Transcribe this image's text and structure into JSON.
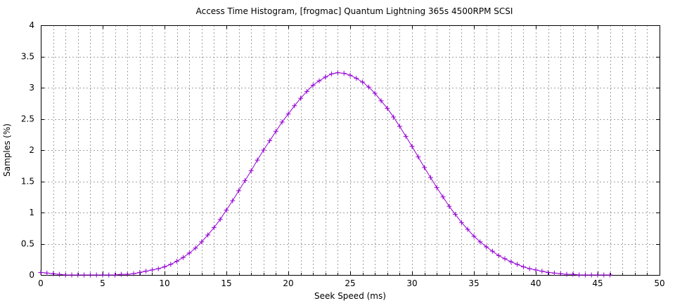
{
  "chart_data": {
    "type": "line",
    "title": "Access Time Histogram, [frogmac] Quantum Lightning 365s 4500RPM SCSI",
    "xlabel": "Seek Speed (ms)",
    "ylabel": "Samples (%)",
    "xlim": [
      0,
      50
    ],
    "ylim": [
      0,
      4
    ],
    "x_ticks": [
      "0",
      "5",
      "10",
      "15",
      "20",
      "25",
      "30",
      "35",
      "40",
      "45",
      "50"
    ],
    "y_ticks": [
      "0",
      "0.5",
      "1",
      "1.5",
      "2",
      "2.5",
      "3",
      "3.5",
      "4"
    ],
    "grid": true,
    "marker": "plus",
    "color": "#9400d3",
    "series": [
      {
        "x": [
          0,
          0.5,
          1,
          1.5,
          2,
          2.5,
          3,
          3.5,
          4,
          4.5,
          5,
          5.5,
          6,
          6.5,
          7,
          7.5,
          8,
          8.5,
          9,
          9.5,
          10,
          10.5,
          11,
          11.5,
          12,
          12.5,
          13,
          13.5,
          14,
          14.5,
          15,
          15.5,
          16,
          16.5,
          17,
          17.5,
          18,
          18.5,
          19,
          19.5,
          20,
          20.5,
          21,
          21.5,
          22,
          22.5,
          23,
          23.5,
          24,
          24.5,
          25,
          25.5,
          26,
          26.5,
          27,
          27.5,
          28,
          28.5,
          29,
          29.5,
          30,
          30.5,
          31,
          31.5,
          32,
          32.5,
          33,
          33.5,
          34,
          34.5,
          35,
          35.5,
          36,
          36.5,
          37,
          37.5,
          38,
          38.5,
          39,
          39.5,
          40,
          40.5,
          41,
          41.5,
          42,
          42.5,
          43,
          43.5,
          44,
          44.5,
          45,
          45.5,
          46
        ],
        "y": [
          0.04,
          0.03,
          0.02,
          0.01,
          0,
          0,
          0,
          0,
          0,
          0,
          0,
          0,
          0,
          0.01,
          0.01,
          0.02,
          0.04,
          0.06,
          0.08,
          0.1,
          0.13,
          0.17,
          0.22,
          0.28,
          0.35,
          0.43,
          0.53,
          0.64,
          0.76,
          0.89,
          1.04,
          1.19,
          1.35,
          1.51,
          1.67,
          1.84,
          2.0,
          2.15,
          2.3,
          2.45,
          2.58,
          2.71,
          2.83,
          2.94,
          3.04,
          3.11,
          3.17,
          3.22,
          3.24,
          3.23,
          3.2,
          3.15,
          3.09,
          3.01,
          2.91,
          2.79,
          2.67,
          2.53,
          2.38,
          2.22,
          2.06,
          1.89,
          1.72,
          1.56,
          1.4,
          1.25,
          1.1,
          0.97,
          0.84,
          0.73,
          0.62,
          0.53,
          0.45,
          0.38,
          0.31,
          0.26,
          0.21,
          0.17,
          0.13,
          0.1,
          0.08,
          0.06,
          0.04,
          0.03,
          0.02,
          0.01,
          0.01,
          0,
          0,
          0,
          0,
          0,
          0
        ]
      }
    ]
  }
}
